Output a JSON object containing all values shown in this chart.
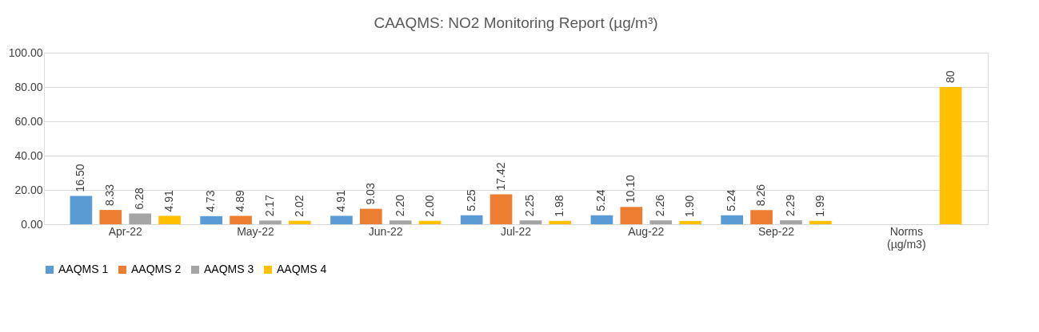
{
  "chart_data": {
    "type": "bar",
    "title": "CAAQMS: NO2 Monitoring Report (µg/m³)",
    "categories": [
      "Apr-22",
      "May-22",
      "Jun-22",
      "Jul-22",
      "Aug-22",
      "Sep-22",
      "Norms (µg/m3)"
    ],
    "series": [
      {
        "name": "AAQMS 1",
        "color": "#5b9bd5",
        "values": [
          16.5,
          4.73,
          4.91,
          5.25,
          5.24,
          5.24,
          null
        ],
        "value_labels": [
          "16.50",
          "4.73",
          "4.91",
          "5.25",
          "5.24",
          "5.24",
          null
        ]
      },
      {
        "name": "AAQMS 2",
        "color": "#ed7d31",
        "values": [
          8.33,
          4.89,
          9.03,
          17.42,
          10.1,
          8.26,
          null
        ],
        "value_labels": [
          "8.33",
          "4.89",
          "9.03",
          "17.42",
          "10.10",
          "8.26",
          null
        ]
      },
      {
        "name": "AAQMS 3",
        "color": "#a5a5a5",
        "values": [
          6.28,
          2.17,
          2.2,
          2.25,
          2.26,
          2.29,
          null
        ],
        "value_labels": [
          "6.28",
          "2.17",
          "2.20",
          "2.25",
          "2.26",
          "2.29",
          null
        ]
      },
      {
        "name": "AAQMS 4",
        "color": "#ffc000",
        "values": [
          4.91,
          2.02,
          2.0,
          1.98,
          1.9,
          1.99,
          80
        ],
        "value_labels": [
          "4.91",
          "2.02",
          "2.00",
          "1.98",
          "1.90",
          "1.99",
          "80"
        ]
      }
    ],
    "ylim": [
      0,
      100
    ],
    "yticks": [
      {
        "value": 0,
        "label": "0.00"
      },
      {
        "value": 20,
        "label": "20.00"
      },
      {
        "value": 40,
        "label": "40.00"
      },
      {
        "value": 60,
        "label": "60.00"
      },
      {
        "value": 80,
        "label": "80.00"
      },
      {
        "value": 100,
        "label": "100.00"
      }
    ],
    "grid": "y",
    "legend": "bottom"
  }
}
